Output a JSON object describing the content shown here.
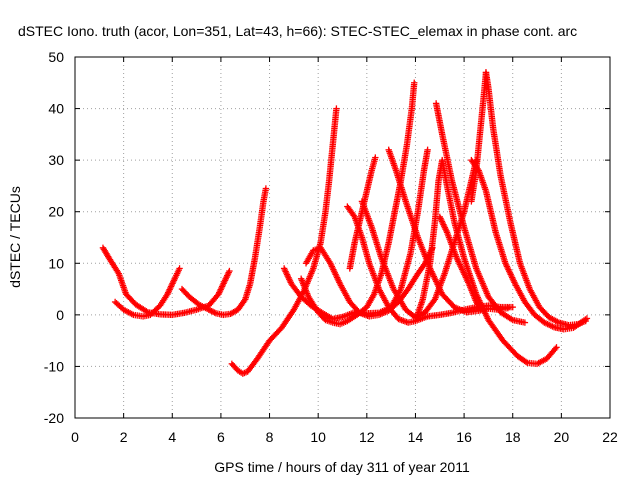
{
  "chart_data": {
    "type": "scatter",
    "title": "dSTEC Iono. truth (acor, Lon=351, Lat=43, h=66): STEC-STEC_elemax in phase cont. arc",
    "xlabel": "GPS time / hours of day 311 of year 2011",
    "ylabel": "dSTEC  / TECUs",
    "xlim": [
      0,
      22
    ],
    "ylim": [
      -20,
      50
    ],
    "x_ticks": [
      0,
      2,
      4,
      6,
      8,
      10,
      12,
      14,
      16,
      18,
      20,
      22
    ],
    "y_ticks": [
      -20,
      -10,
      0,
      10,
      20,
      30,
      40,
      50
    ],
    "x_tick_labels": [
      "0",
      "2",
      "4",
      "6",
      "8",
      "10",
      "12",
      "14",
      "16",
      "18",
      "20",
      "22"
    ],
    "y_tick_labels": [
      "-20",
      "-10",
      "0",
      "10",
      "20",
      "30",
      "40",
      "50"
    ],
    "grid": true,
    "marker": "+",
    "color": "#ff0000",
    "series": [
      {
        "points": [
          [
            1.15,
            13
          ],
          [
            1.4,
            11
          ],
          [
            1.8,
            8
          ],
          [
            2.1,
            4
          ],
          [
            2.5,
            2
          ],
          [
            3.0,
            0.5
          ],
          [
            3.5,
            0.1
          ],
          [
            4.0,
            0.0
          ],
          [
            4.5,
            0.4
          ],
          [
            5.0,
            1.0
          ],
          [
            5.5,
            1.8
          ],
          [
            5.9,
            4
          ],
          [
            6.2,
            7
          ],
          [
            6.35,
            8.5
          ]
        ]
      },
      {
        "points": [
          [
            1.65,
            2.5
          ],
          [
            2.0,
            1.0
          ],
          [
            2.4,
            0
          ],
          [
            2.8,
            -0.3
          ],
          [
            3.1,
            0
          ],
          [
            3.5,
            1.8
          ],
          [
            3.8,
            4
          ],
          [
            4.1,
            7
          ],
          [
            4.3,
            9
          ]
        ]
      },
      {
        "points": [
          [
            4.4,
            5
          ],
          [
            4.7,
            3.5
          ],
          [
            5.1,
            2
          ],
          [
            5.5,
            1
          ],
          [
            5.8,
            0.3
          ],
          [
            6.1,
            0
          ],
          [
            6.4,
            0.2
          ],
          [
            6.7,
            1
          ],
          [
            7.0,
            3
          ],
          [
            7.2,
            6
          ],
          [
            7.4,
            11
          ],
          [
            7.6,
            17
          ],
          [
            7.75,
            22
          ],
          [
            7.85,
            24.5
          ]
        ]
      },
      {
        "points": [
          [
            6.45,
            -9.5
          ],
          [
            6.7,
            -10.8
          ],
          [
            6.9,
            -11.4
          ],
          [
            7.1,
            -11
          ],
          [
            7.5,
            -8.5
          ],
          [
            8.0,
            -5
          ],
          [
            8.5,
            -2.5
          ],
          [
            9.0,
            1
          ],
          [
            9.4,
            4.5
          ],
          [
            9.8,
            9
          ],
          [
            10.1,
            14
          ],
          [
            10.3,
            20
          ],
          [
            10.45,
            26
          ],
          [
            10.6,
            33
          ],
          [
            10.75,
            40
          ]
        ]
      },
      {
        "points": [
          [
            8.6,
            9
          ],
          [
            8.9,
            6
          ],
          [
            9.3,
            3.5
          ],
          [
            9.7,
            1.8
          ],
          [
            10.2,
            0.3
          ],
          [
            10.6,
            -0.8
          ],
          [
            11.0,
            -0.4
          ],
          [
            11.5,
            0.5
          ],
          [
            12.0,
            0.3
          ],
          [
            12.5,
            0.4
          ],
          [
            13.0,
            1.5
          ],
          [
            13.4,
            5
          ],
          [
            13.8,
            12
          ],
          [
            14.1,
            20
          ],
          [
            14.35,
            28
          ],
          [
            14.5,
            32
          ]
        ]
      },
      {
        "points": [
          [
            9.3,
            7
          ],
          [
            9.6,
            3.5
          ],
          [
            10.0,
            0.5
          ],
          [
            10.3,
            -1
          ],
          [
            10.6,
            -1.5
          ],
          [
            10.9,
            -1.8
          ],
          [
            11.2,
            -1.2
          ],
          [
            11.6,
            0
          ],
          [
            12.0,
            1.5
          ],
          [
            12.3,
            4
          ],
          [
            12.6,
            8
          ],
          [
            12.9,
            14
          ],
          [
            13.15,
            20
          ],
          [
            13.4,
            26
          ],
          [
            13.65,
            33
          ],
          [
            13.85,
            40
          ],
          [
            13.95,
            45
          ]
        ]
      },
      {
        "points": [
          [
            9.5,
            10
          ],
          [
            9.8,
            12.5
          ],
          [
            10.1,
            13
          ],
          [
            10.5,
            10
          ],
          [
            10.9,
            6
          ],
          [
            11.3,
            2.5
          ],
          [
            11.7,
            0.4
          ],
          [
            12.1,
            -0.3
          ],
          [
            12.5,
            0
          ],
          [
            12.9,
            0.8
          ],
          [
            13.3,
            2.5
          ],
          [
            13.7,
            5
          ],
          [
            14.1,
            8
          ],
          [
            14.4,
            10
          ],
          [
            14.7,
            13
          ]
        ]
      },
      {
        "points": [
          [
            11.2,
            21
          ],
          [
            11.5,
            19
          ],
          [
            11.8,
            15
          ],
          [
            12.1,
            10
          ],
          [
            12.5,
            5
          ],
          [
            12.9,
            1.5
          ],
          [
            13.3,
            -0.8
          ],
          [
            13.7,
            -1.5
          ],
          [
            14.0,
            -1.2
          ],
          [
            14.5,
            -0.3
          ],
          [
            15.0,
            0
          ],
          [
            15.5,
            0.4
          ],
          [
            16.0,
            1
          ],
          [
            16.5,
            1.5
          ],
          [
            17.0,
            1.8
          ],
          [
            17.5,
            1.5
          ],
          [
            18.0,
            1.5
          ]
        ]
      },
      {
        "points": [
          [
            11.3,
            9
          ],
          [
            11.5,
            14
          ],
          [
            11.8,
            20
          ],
          [
            12.0,
            24
          ],
          [
            12.2,
            28
          ],
          [
            12.35,
            30.5
          ]
        ]
      },
      {
        "points": [
          [
            11.8,
            22
          ],
          [
            12.2,
            17
          ],
          [
            12.6,
            11
          ],
          [
            13.1,
            5
          ],
          [
            13.6,
            1
          ],
          [
            14.0,
            -0.5
          ],
          [
            14.4,
            0.5
          ],
          [
            14.8,
            3
          ],
          [
            15.2,
            8
          ],
          [
            15.6,
            14
          ],
          [
            16.0,
            20
          ],
          [
            16.3,
            26
          ],
          [
            16.5,
            30
          ]
        ]
      },
      {
        "points": [
          [
            12.9,
            32
          ],
          [
            13.2,
            28
          ],
          [
            13.6,
            22
          ],
          [
            14.1,
            15
          ],
          [
            14.6,
            9
          ],
          [
            15.1,
            4
          ],
          [
            15.6,
            1.5
          ],
          [
            16.1,
            0.5
          ],
          [
            16.6,
            0.8
          ],
          [
            17.0,
            1.2
          ],
          [
            17.4,
            1.0
          ],
          [
            17.8,
            1.3
          ]
        ]
      },
      {
        "points": [
          [
            14.05,
            -0.5
          ],
          [
            14.3,
            3
          ],
          [
            14.6,
            10
          ],
          [
            14.8,
            18
          ],
          [
            14.95,
            26
          ],
          [
            15.1,
            30
          ],
          [
            15.3,
            25
          ],
          [
            15.6,
            18
          ],
          [
            16.0,
            11
          ],
          [
            16.5,
            4
          ],
          [
            17.0,
            -1
          ],
          [
            17.6,
            -5
          ],
          [
            18.2,
            -8
          ],
          [
            18.6,
            -9.3
          ],
          [
            19.0,
            -9.5
          ],
          [
            19.4,
            -8.5
          ],
          [
            19.8,
            -6.3
          ]
        ]
      },
      {
        "points": [
          [
            14.85,
            41
          ],
          [
            15.1,
            35
          ],
          [
            15.5,
            26
          ],
          [
            16.0,
            17
          ],
          [
            16.5,
            9
          ],
          [
            17.0,
            3.5
          ],
          [
            17.5,
            0.5
          ],
          [
            18.0,
            -1
          ],
          [
            18.5,
            -1.5
          ]
        ]
      },
      {
        "points": [
          [
            15.0,
            19
          ],
          [
            15.3,
            16
          ],
          [
            15.7,
            11
          ],
          [
            16.2,
            6
          ],
          [
            16.5,
            2.5
          ],
          [
            16.7,
            1.2
          ]
        ]
      },
      {
        "points": [
          [
            16.3,
            30
          ],
          [
            16.6,
            28
          ],
          [
            16.9,
            24
          ],
          [
            17.3,
            16
          ],
          [
            17.7,
            10
          ],
          [
            18.1,
            6
          ],
          [
            18.5,
            2.5
          ],
          [
            18.9,
            0
          ],
          [
            19.3,
            -1.5
          ],
          [
            19.7,
            -2.4
          ],
          [
            20.1,
            -2.8
          ],
          [
            20.5,
            -2.5
          ],
          [
            20.8,
            -1.5
          ],
          [
            21.05,
            -0.7
          ]
        ]
      },
      {
        "points": [
          [
            16.3,
            22
          ],
          [
            16.5,
            28
          ],
          [
            16.65,
            35
          ],
          [
            16.8,
            42
          ],
          [
            16.9,
            47
          ]
        ]
      },
      {
        "points": [
          [
            16.9,
            47
          ],
          [
            17.0,
            44
          ],
          [
            17.2,
            36
          ],
          [
            17.5,
            27
          ],
          [
            17.9,
            18
          ],
          [
            18.3,
            10
          ],
          [
            18.7,
            5
          ],
          [
            19.1,
            1.5
          ],
          [
            19.5,
            -0.5
          ],
          [
            19.9,
            -1.5
          ],
          [
            20.3,
            -2
          ],
          [
            20.7,
            -1.8
          ],
          [
            21.0,
            -1.2
          ]
        ]
      }
    ]
  }
}
